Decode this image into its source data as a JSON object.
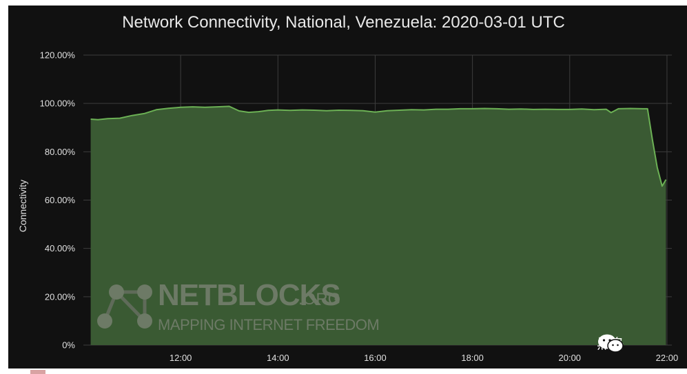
{
  "chart_data": {
    "type": "area",
    "title": "Network Connectivity, National, Venezuela: 2020-03-01 UTC",
    "ylabel": "Connectivity",
    "xlabel": "",
    "x_tick_labels": [
      "12:00",
      "14:00",
      "16:00",
      "18:00",
      "20:00",
      "22:00"
    ],
    "x_tick_hours": [
      12,
      14,
      16,
      18,
      20,
      22
    ],
    "y_tick_labels": [
      "0%",
      "20.00%",
      "40.00%",
      "60.00%",
      "80.00%",
      "100.00%",
      "120.00%"
    ],
    "y_tick_values": [
      0,
      20,
      40,
      60,
      80,
      100,
      120
    ],
    "xlim": [
      10.0,
      22.1
    ],
    "ylim": [
      0,
      120
    ],
    "grid": true,
    "fill_color": "#3a5a33",
    "line_color": "#6cb155",
    "series": [
      {
        "x": [
          10.15,
          10.3,
          10.5,
          10.75,
          11.0,
          11.25,
          11.5,
          11.75,
          12.0,
          12.25,
          12.5,
          12.75,
          13.0,
          13.2,
          13.4,
          13.6,
          13.8,
          14.0,
          14.25,
          14.5,
          14.75,
          15.0,
          15.25,
          15.5,
          15.75,
          16.0,
          16.25,
          16.5,
          16.75,
          17.0,
          17.25,
          17.5,
          17.75,
          18.0,
          18.25,
          18.5,
          18.75,
          19.0,
          19.25,
          19.5,
          19.75,
          20.0,
          20.25,
          20.5,
          20.75,
          20.85,
          21.0,
          21.25,
          21.5,
          21.6,
          21.7,
          21.8,
          21.9,
          21.98
        ],
        "y": [
          93.5,
          93.3,
          93.7,
          93.9,
          95.0,
          95.8,
          97.4,
          98.0,
          98.4,
          98.6,
          98.4,
          98.6,
          98.8,
          96.9,
          96.3,
          96.6,
          97.1,
          97.3,
          97.1,
          97.3,
          97.2,
          97.0,
          97.2,
          97.1,
          97.0,
          96.4,
          97.0,
          97.2,
          97.4,
          97.3,
          97.6,
          97.6,
          97.8,
          97.8,
          97.9,
          97.8,
          97.6,
          97.7,
          97.5,
          97.6,
          97.5,
          97.5,
          97.7,
          97.4,
          97.6,
          96.2,
          97.8,
          97.9,
          97.8,
          97.8,
          85.0,
          73.5,
          65.8,
          68.5
        ]
      }
    ]
  },
  "watermark": {
    "name": "NETBLOCKS",
    "tld": ".ORG",
    "tagline": "MAPPING INTERNET FREEDOM"
  },
  "badge": {
    "icon": "wechat-icon",
    "text": "黑鸟"
  }
}
